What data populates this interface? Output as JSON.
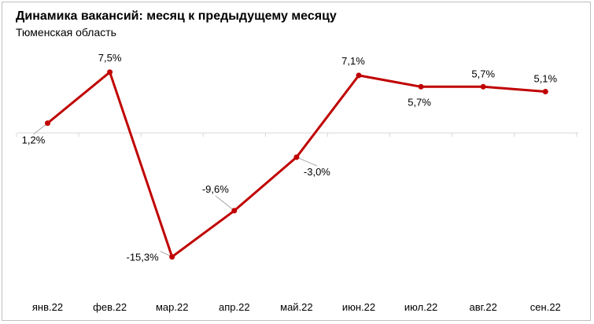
{
  "chart_data": {
    "type": "line",
    "title": "Динамика вакансий: месяц к предыдущему месяцу",
    "subtitle": "Тюменская область",
    "categories": [
      "янв.22",
      "фев.22",
      "мар.22",
      "апр.22",
      "май.22",
      "июн.22",
      "июл.22",
      "авг.22",
      "сен.22"
    ],
    "series": [
      {
        "values": [
          1.2,
          7.5,
          -15.3,
          -9.6,
          -3.0,
          7.1,
          5.7,
          5.7,
          5.1
        ],
        "labels": [
          "1,2%",
          "7,5%",
          "-15,3%",
          "-9,6%",
          "-3,0%",
          "7,1%",
          "5,7%",
          "5,7%",
          "5,1%"
        ],
        "color": "#c00000"
      }
    ],
    "ylim": [
      -20,
      10
    ],
    "grid": false,
    "legend": "none"
  }
}
